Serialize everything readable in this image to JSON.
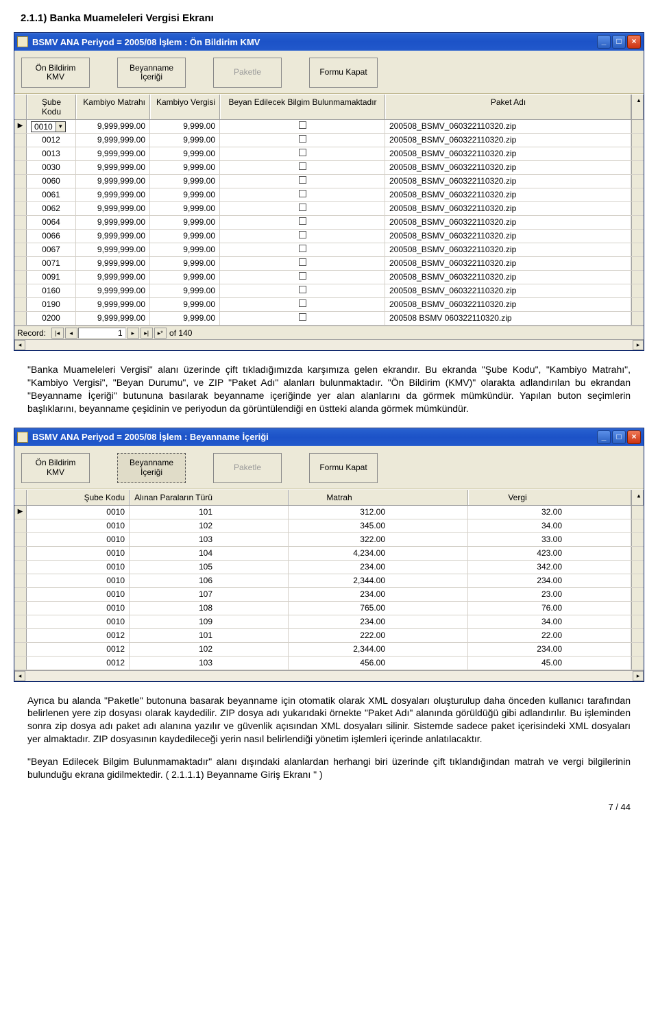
{
  "doc": {
    "heading": "2.1.1)  Banka Muameleleri Vergisi Ekranı",
    "para1": "\"Banka Muameleleri Vergisi\" alanı üzerinde çift tıkladığımızda karşımıza gelen ekrandır. Bu ekranda \"Şube Kodu\", \"Kambiyo Matrahı\", \"Kambiyo Vergisi\", \"Beyan Durumu\", ve ZIP \"Paket Adı\" alanları bulunmaktadır. \"Ön Bildirim (KMV)\" olarakta adlandırılan bu ekrandan \"Beyanname İçeriği\" butununa basılarak beyanname içeriğinde yer alan alanlarını da görmek mümkündür. Yapılan buton seçimlerin başlıklarını, beyanname çeşidinin ve periyodun da görüntülendiği en üstteki alanda görmek mümkündür.",
    "para2": "Ayrıca bu alanda \"Paketle\" butonuna basarak beyanname için otomatik olarak XML dosyaları oluşturulup daha önceden kullanıcı tarafından belirlenen yere zip dosyası olarak kaydedilir. ZIP dosya adı yukarıdaki örnekte \"Paket Adı\" alanında görüldüğü gibi adlandırılır. Bu işleminden sonra zip dosya adı paket adı alanına yazılır ve güvenlik açısından XML dosyaları silinir. Sistemde sadece paket içerisindeki XML dosyaları yer almaktadır. ZIP dosyasının kaydedileceği yerin nasıl belirlendiği yönetim işlemleri içerinde anlatılacaktır.",
    "para3": "\"Beyan Edilecek Bilgim Bulunmamaktadır\" alanı dışındaki alanlardan  herhangi biri üzerinde çift tıklandığından matrah ve vergi bilgilerinin bulunduğu ekrana gidilmektedir. ( 2.1.1.1)  Beyanname Giriş Ekranı \" )",
    "pagenum": "7 / 44"
  },
  "win1": {
    "title": "BSMV ANA  Periyod = 2005/08  İşlem : Ön Bildirim KMV",
    "toolbar": {
      "b1": "Ön Bildirim\nKMV",
      "b2": "Beyanname İçeriği",
      "b3": "Paketle",
      "b4": "Formu Kapat"
    },
    "headers": {
      "c1": "Şube Kodu",
      "c2": "Kambiyo Matrahı",
      "c3": "Kambiyo Vergisi",
      "c4": "Beyan Edilecek Bilgim Bulunmamaktadır",
      "c5": "Paket Adı"
    },
    "active_sube": "0010",
    "rows": [
      {
        "sube": "0010",
        "matrah": "9,999,999.00",
        "vergi": "9,999.00",
        "paket": "200508_BSMV_060322110320.zip"
      },
      {
        "sube": "0012",
        "matrah": "9,999,999.00",
        "vergi": "9,999.00",
        "paket": "200508_BSMV_060322110320.zip"
      },
      {
        "sube": "0013",
        "matrah": "9,999,999.00",
        "vergi": "9,999.00",
        "paket": "200508_BSMV_060322110320.zip"
      },
      {
        "sube": "0030",
        "matrah": "9,999,999.00",
        "vergi": "9,999.00",
        "paket": "200508_BSMV_060322110320.zip"
      },
      {
        "sube": "0060",
        "matrah": "9,999,999.00",
        "vergi": "9,999.00",
        "paket": "200508_BSMV_060322110320.zip"
      },
      {
        "sube": "0061",
        "matrah": "9,999,999.00",
        "vergi": "9,999.00",
        "paket": "200508_BSMV_060322110320.zip"
      },
      {
        "sube": "0062",
        "matrah": "9,999,999.00",
        "vergi": "9,999.00",
        "paket": "200508_BSMV_060322110320.zip"
      },
      {
        "sube": "0064",
        "matrah": "9,999,999.00",
        "vergi": "9,999.00",
        "paket": "200508_BSMV_060322110320.zip"
      },
      {
        "sube": "0066",
        "matrah": "9,999,999.00",
        "vergi": "9,999.00",
        "paket": "200508_BSMV_060322110320.zip"
      },
      {
        "sube": "0067",
        "matrah": "9,999,999.00",
        "vergi": "9,999.00",
        "paket": "200508_BSMV_060322110320.zip"
      },
      {
        "sube": "0071",
        "matrah": "9,999,999.00",
        "vergi": "9,999.00",
        "paket": "200508_BSMV_060322110320.zip"
      },
      {
        "sube": "0091",
        "matrah": "9,999,999.00",
        "vergi": "9,999.00",
        "paket": "200508_BSMV_060322110320.zip"
      },
      {
        "sube": "0160",
        "matrah": "9,999,999.00",
        "vergi": "9,999.00",
        "paket": "200508_BSMV_060322110320.zip"
      },
      {
        "sube": "0190",
        "matrah": "9,999,999.00",
        "vergi": "9,999.00",
        "paket": "200508_BSMV_060322110320.zip"
      },
      {
        "sube": "0200",
        "matrah": "9,999,999.00",
        "vergi": "9,999.00",
        "paket": "200508 BSMV 060322110320.zip"
      }
    ],
    "record": {
      "label": "Record:",
      "num": "1",
      "of": "of 140"
    }
  },
  "win2": {
    "title": "BSMV ANA  Periyod = 2005/08  İşlem : Beyanname İçeriği",
    "toolbar": {
      "b1": "Ön Bildirim\nKMV",
      "b2": "Beyanname İçeriği",
      "b3": "Paketle",
      "b4": "Formu Kapat"
    },
    "headers": {
      "c1": "Şube Kodu",
      "c2": "Alınan Paraların Türü",
      "c3": "Matrah",
      "c4": "Vergi"
    },
    "rows": [
      {
        "sube": "0010",
        "tur": "101",
        "matrah": "312.00",
        "vergi": "32.00"
      },
      {
        "sube": "0010",
        "tur": "102",
        "matrah": "345.00",
        "vergi": "34.00"
      },
      {
        "sube": "0010",
        "tur": "103",
        "matrah": "322.00",
        "vergi": "33.00"
      },
      {
        "sube": "0010",
        "tur": "104",
        "matrah": "4,234.00",
        "vergi": "423.00"
      },
      {
        "sube": "0010",
        "tur": "105",
        "matrah": "234.00",
        "vergi": "342.00"
      },
      {
        "sube": "0010",
        "tur": "106",
        "matrah": "2,344.00",
        "vergi": "234.00"
      },
      {
        "sube": "0010",
        "tur": "107",
        "matrah": "234.00",
        "vergi": "23.00"
      },
      {
        "sube": "0010",
        "tur": "108",
        "matrah": "765.00",
        "vergi": "76.00"
      },
      {
        "sube": "0010",
        "tur": "109",
        "matrah": "234.00",
        "vergi": "34.00"
      },
      {
        "sube": "0012",
        "tur": "101",
        "matrah": "222.00",
        "vergi": "22.00"
      },
      {
        "sube": "0012",
        "tur": "102",
        "matrah": "2,344.00",
        "vergi": "234.00"
      },
      {
        "sube": "0012",
        "tur": "103",
        "matrah": "456.00",
        "vergi": "45.00"
      }
    ]
  }
}
